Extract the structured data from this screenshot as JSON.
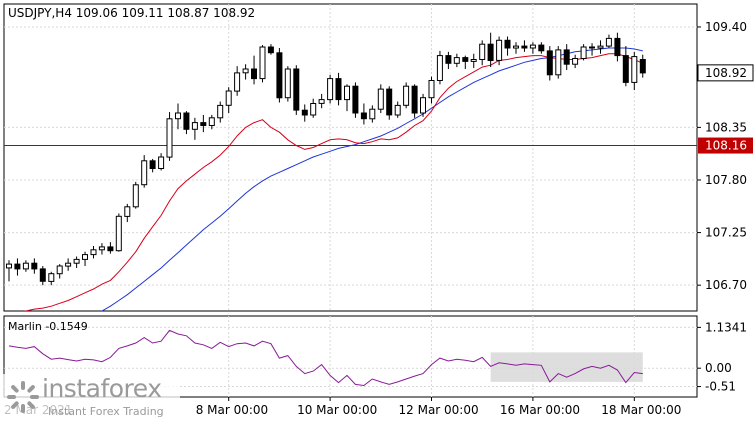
{
  "chart_data": {
    "type": "candlestick",
    "symbol_header": "USDJPY,H4  109.06 109.11 108.87 108.92",
    "price_axis": {
      "ticks": [
        "109.40",
        "108.35",
        "107.80",
        "107.25",
        "106.70"
      ],
      "tick_values": [
        109.4,
        108.35,
        107.8,
        107.25,
        106.7
      ],
      "range": [
        106.43,
        109.64
      ]
    },
    "current_price_label": "108.92",
    "current_price": 108.92,
    "level_line_label": "108.16",
    "level_line": 108.16,
    "x_axis_labels": [
      "8 Mar 00:00",
      "10 Mar 00:00",
      "12 Mar 00:00",
      "16 Mar 00:00",
      "18 Mar 00:00"
    ],
    "x_axis_label_index": [
      26,
      38,
      50,
      62,
      74
    ],
    "x_axis_partial_label": "2 Mar 2021",
    "candles": [
      [
        106.88,
        106.96,
        106.74,
        106.92
      ],
      [
        106.92,
        106.98,
        106.8,
        106.87
      ],
      [
        106.87,
        106.96,
        106.84,
        106.93
      ],
      [
        106.93,
        106.98,
        106.82,
        106.87
      ],
      [
        106.87,
        106.9,
        106.7,
        106.74
      ],
      [
        106.74,
        106.84,
        106.7,
        106.82
      ],
      [
        106.82,
        106.92,
        106.77,
        106.9
      ],
      [
        106.9,
        106.98,
        106.85,
        106.93
      ],
      [
        106.93,
        107.0,
        106.88,
        106.97
      ],
      [
        106.97,
        107.05,
        106.9,
        107.02
      ],
      [
        107.02,
        107.11,
        106.98,
        107.07
      ],
      [
        107.07,
        107.14,
        107.02,
        107.1
      ],
      [
        107.1,
        107.15,
        107.03,
        107.06
      ],
      [
        107.06,
        107.45,
        107.05,
        107.42
      ],
      [
        107.42,
        107.55,
        107.36,
        107.52
      ],
      [
        107.52,
        107.78,
        107.5,
        107.75
      ],
      [
        107.75,
        108.06,
        107.72,
        108.0
      ],
      [
        108.0,
        108.02,
        107.88,
        107.92
      ],
      [
        107.92,
        108.08,
        107.9,
        108.04
      ],
      [
        108.04,
        108.51,
        108.0,
        108.44
      ],
      [
        108.44,
        108.6,
        108.33,
        108.5
      ],
      [
        108.5,
        108.52,
        108.28,
        108.33
      ],
      [
        108.33,
        108.45,
        108.22,
        108.4
      ],
      [
        108.4,
        108.48,
        108.3,
        108.37
      ],
      [
        108.37,
        108.48,
        108.33,
        108.45
      ],
      [
        108.45,
        108.62,
        108.4,
        108.58
      ],
      [
        108.58,
        108.77,
        108.5,
        108.73
      ],
      [
        108.73,
        108.99,
        108.68,
        108.92
      ],
      [
        108.92,
        109.01,
        108.85,
        108.96
      ],
      [
        108.96,
        109.1,
        108.8,
        108.86
      ],
      [
        108.86,
        109.21,
        108.82,
        109.19
      ],
      [
        109.19,
        109.22,
        109.11,
        109.13
      ],
      [
        109.13,
        109.18,
        108.61,
        108.66
      ],
      [
        108.66,
        108.99,
        108.62,
        108.96
      ],
      [
        108.96,
        109.0,
        108.48,
        108.53
      ],
      [
        108.53,
        108.59,
        108.41,
        108.48
      ],
      [
        108.48,
        108.65,
        108.45,
        108.6
      ],
      [
        108.6,
        108.7,
        108.55,
        108.64
      ],
      [
        108.64,
        108.9,
        108.6,
        108.86
      ],
      [
        108.86,
        108.92,
        108.58,
        108.64
      ],
      [
        108.64,
        108.8,
        108.52,
        108.78
      ],
      [
        108.78,
        108.82,
        108.45,
        108.5
      ],
      [
        108.5,
        108.6,
        108.38,
        108.44
      ],
      [
        108.44,
        108.58,
        108.4,
        108.54
      ],
      [
        108.54,
        108.8,
        108.5,
        108.75
      ],
      [
        108.75,
        108.78,
        108.43,
        108.48
      ],
      [
        108.48,
        108.62,
        108.45,
        108.58
      ],
      [
        108.58,
        108.82,
        108.55,
        108.78
      ],
      [
        108.78,
        108.8,
        108.45,
        108.5
      ],
      [
        108.5,
        108.7,
        108.46,
        108.66
      ],
      [
        108.66,
        108.88,
        108.6,
        108.84
      ],
      [
        108.84,
        109.15,
        108.8,
        109.1
      ],
      [
        109.1,
        109.14,
        108.96,
        109.02
      ],
      [
        109.02,
        109.12,
        108.98,
        109.08
      ],
      [
        109.08,
        109.1,
        108.96,
        109.04
      ],
      [
        109.04,
        109.12,
        108.97,
        109.06
      ],
      [
        109.06,
        109.26,
        109.0,
        109.22
      ],
      [
        109.22,
        109.34,
        108.98,
        109.05
      ],
      [
        109.05,
        109.3,
        109.0,
        109.26
      ],
      [
        109.26,
        109.3,
        109.1,
        109.18
      ],
      [
        109.18,
        109.24,
        109.12,
        109.2
      ],
      [
        109.2,
        109.26,
        109.14,
        109.18
      ],
      [
        109.18,
        109.24,
        109.12,
        109.21
      ],
      [
        109.21,
        109.24,
        109.12,
        109.15
      ],
      [
        109.15,
        109.2,
        108.84,
        108.9
      ],
      [
        108.9,
        109.2,
        108.86,
        109.16
      ],
      [
        109.16,
        109.22,
        108.95,
        109.01
      ],
      [
        109.01,
        109.11,
        108.97,
        109.07
      ],
      [
        109.07,
        109.22,
        109.05,
        109.19
      ],
      [
        109.19,
        109.23,
        109.1,
        109.18
      ],
      [
        109.18,
        109.26,
        109.12,
        109.2
      ],
      [
        109.2,
        109.32,
        109.18,
        109.28
      ],
      [
        109.28,
        109.34,
        109.04,
        109.1
      ],
      [
        109.1,
        109.2,
        108.78,
        108.82
      ],
      [
        108.82,
        109.14,
        108.74,
        109.09
      ],
      [
        109.06,
        109.11,
        108.87,
        108.92
      ]
    ],
    "ema_fast_red": [
      106.4,
      106.41,
      106.43,
      106.45,
      106.46,
      106.48,
      106.51,
      106.54,
      106.58,
      106.62,
      106.66,
      106.71,
      106.75,
      106.84,
      106.94,
      107.05,
      107.19,
      107.31,
      107.43,
      107.58,
      107.71,
      107.79,
      107.86,
      107.93,
      107.99,
      108.06,
      108.15,
      108.26,
      108.35,
      108.4,
      108.43,
      108.35,
      108.3,
      108.22,
      108.16,
      108.12,
      108.14,
      108.18,
      108.22,
      108.23,
      108.22,
      108.19,
      108.18,
      108.2,
      108.23,
      108.22,
      108.24,
      108.3,
      108.37,
      108.42,
      108.52,
      108.66,
      108.76,
      108.83,
      108.88,
      108.93,
      108.98,
      109.0,
      109.05,
      109.06,
      109.08,
      109.09,
      109.1,
      109.1,
      109.08,
      109.07,
      109.06,
      109.06,
      109.07,
      109.08,
      109.1,
      109.12,
      109.12,
      109.09,
      109.06,
      109.02
    ],
    "ema_slow_blue": [
      105.9,
      105.95,
      106.0,
      106.05,
      106.09,
      106.13,
      106.18,
      106.23,
      106.28,
      106.33,
      106.38,
      106.43,
      106.48,
      106.54,
      106.6,
      106.67,
      106.74,
      106.81,
      106.88,
      106.96,
      107.04,
      107.12,
      107.2,
      107.28,
      107.35,
      107.42,
      107.5,
      107.58,
      107.66,
      107.73,
      107.79,
      107.84,
      107.88,
      107.92,
      107.96,
      108.0,
      108.04,
      108.07,
      108.1,
      108.13,
      108.15,
      108.17,
      108.2,
      108.23,
      108.26,
      108.3,
      108.34,
      108.39,
      108.44,
      108.49,
      108.55,
      108.61,
      108.67,
      108.72,
      108.77,
      108.82,
      108.86,
      108.9,
      108.94,
      108.97,
      109.0,
      109.03,
      109.05,
      109.07,
      109.08,
      109.1,
      109.12,
      109.14,
      109.15,
      109.16,
      109.17,
      109.18,
      109.18,
      109.18,
      109.17,
      109.15
    ],
    "indicator": {
      "label": "Marlin -0.1549",
      "ticks": [
        "1.1341",
        "0.00",
        "-0.51"
      ],
      "tick_values": [
        1.1341,
        0.0,
        -0.51
      ],
      "range": [
        -0.8,
        1.45
      ],
      "values": [
        0.62,
        0.58,
        0.55,
        0.6,
        0.4,
        0.25,
        0.28,
        0.24,
        0.2,
        0.25,
        0.23,
        0.18,
        0.3,
        0.55,
        0.62,
        0.7,
        0.85,
        0.7,
        0.75,
        1.05,
        0.95,
        0.9,
        0.7,
        0.65,
        0.55,
        0.72,
        0.6,
        0.68,
        0.7,
        0.62,
        0.75,
        0.68,
        0.28,
        0.35,
        0.05,
        -0.15,
        -0.08,
        0.1,
        -0.2,
        -0.4,
        -0.2,
        -0.45,
        -0.48,
        -0.3,
        -0.38,
        -0.45,
        -0.38,
        -0.3,
        -0.22,
        -0.15,
        0.1,
        0.28,
        0.2,
        0.25,
        0.22,
        0.18,
        0.3,
        0.05,
        0.15,
        0.12,
        0.08,
        0.12,
        0.1,
        0.08,
        -0.38,
        -0.15,
        -0.25,
        -0.15,
        -0.02,
        0.05,
        0.0,
        0.08,
        -0.05,
        -0.4,
        -0.12,
        -0.15
      ],
      "shaded_box": {
        "x_index": [
          57,
          75
        ],
        "y_range": [
          -0.38,
          0.44
        ]
      }
    }
  },
  "watermark": {
    "name": "instaforex",
    "tagline": "Instant Forex Trading"
  }
}
